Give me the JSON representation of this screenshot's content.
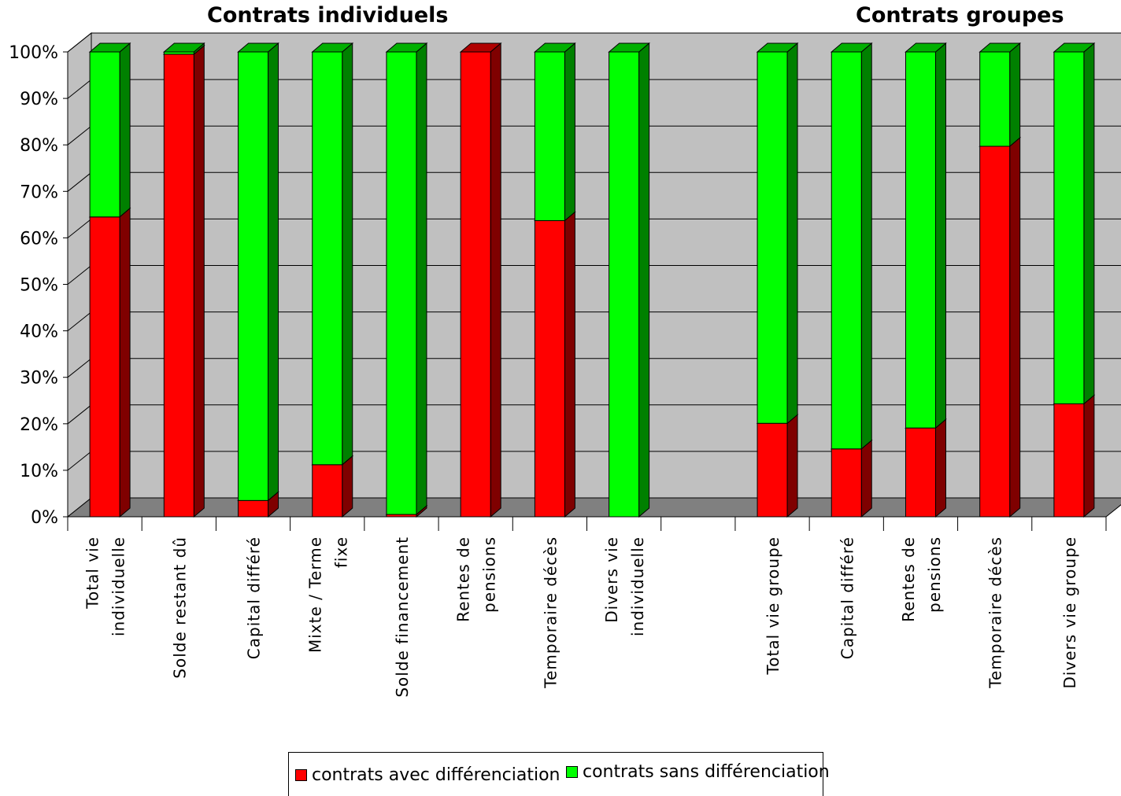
{
  "chart_data": {
    "type": "bar",
    "stacked": "percent",
    "three_d": true,
    "group_titles": [
      "Contrats individuels",
      "Contrats groupes"
    ],
    "categories": [
      [
        "Total vie",
        "individuelle"
      ],
      [
        "Solde restant dû"
      ],
      [
        "Capital différé"
      ],
      [
        "Mixte / Terme",
        "fixe"
      ],
      [
        "Solde financement"
      ],
      [
        "Rentes de",
        "pensions"
      ],
      [
        "Temporaire décès"
      ],
      [
        "Divers vie",
        "individuelle"
      ],
      [],
      [
        "Total vie groupe"
      ],
      [
        "Capital différé"
      ],
      [
        "Rentes de",
        "pensions"
      ],
      [
        "Temporaire décès"
      ],
      [
        "Divers vie groupe"
      ]
    ],
    "series": [
      {
        "name": "contrats avec différenciation",
        "color": "#ff0000",
        "shade": "#7f0000",
        "values": [
          64.5,
          99.5,
          3.5,
          11.2,
          0.5,
          100,
          63.7,
          0,
          null,
          20.1,
          14.6,
          19.1,
          79.7,
          24.3
        ]
      },
      {
        "name": "contrats sans différenciation",
        "color": "#00ff00",
        "shade": "#008000",
        "values": [
          35.5,
          0.5,
          96.5,
          88.8,
          99.5,
          0,
          36.3,
          100,
          null,
          79.9,
          85.4,
          80.9,
          20.3,
          75.7
        ]
      }
    ],
    "yticks": [
      "0%",
      "10%",
      "20%",
      "30%",
      "40%",
      "50%",
      "60%",
      "70%",
      "80%",
      "90%",
      "100%"
    ],
    "ylim": [
      0,
      100
    ],
    "grid": true,
    "legend_position": "bottom"
  },
  "colors": {
    "wall": "#c0c0c0",
    "floor": "#808080"
  }
}
